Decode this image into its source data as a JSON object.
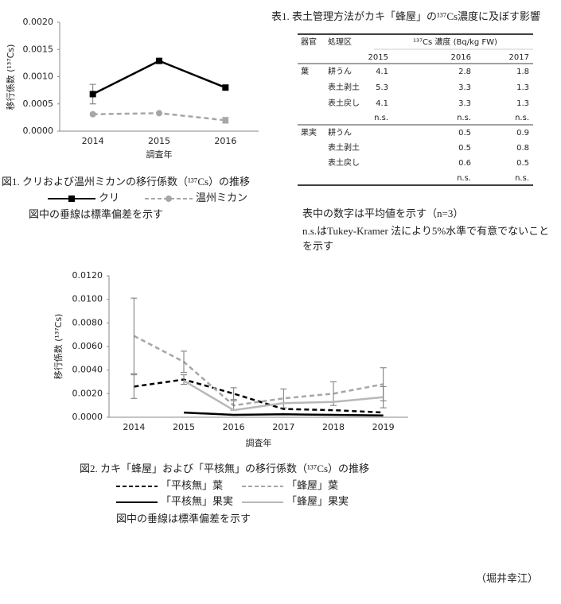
{
  "chart_data": [
    {
      "type": "line",
      "ylabel": "移行係数 (¹³⁷Cs)",
      "xlabel": "調査年",
      "categories": [
        "2014",
        "2015",
        "2016"
      ],
      "ylim": [
        0,
        0.002
      ],
      "yticks": [
        {
          "value": 0,
          "label": "0.0000"
        },
        {
          "value": 0.0005,
          "label": "0.0005"
        },
        {
          "value": 0.001,
          "label": "0.0010"
        },
        {
          "value": 0.0015,
          "label": "0.0015"
        },
        {
          "value": 0.002,
          "label": "0.0020"
        }
      ],
      "series": [
        {
          "name": "クリ",
          "color": "#000000",
          "dash": false,
          "marker": "square",
          "values": [
            0.00068,
            0.00129,
            0.0008
          ],
          "errors": [
            0.00018,
            null,
            null
          ]
        },
        {
          "name": "温州ミカン",
          "color": "#a6a6a6",
          "dash": true,
          "marker": "circle",
          "values": [
            0.00031,
            0.00033,
            0.0002
          ],
          "errors": [
            null,
            null,
            5e-05
          ]
        }
      ],
      "caption": "図1. クリおよび温州ミカンの移行係数（¹³⁷Cs）の推移",
      "note": "図中の垂線は標準偏差を示す"
    },
    {
      "type": "line",
      "ylabel": "移行係数 (¹³⁷Cs)",
      "xlabel": "調査年",
      "categories": [
        "2014",
        "2015",
        "2016",
        "2017",
        "2018",
        "2019"
      ],
      "ylim": [
        0,
        0.012
      ],
      "yticks": [
        {
          "value": 0,
          "label": "0.0000"
        },
        {
          "value": 0.002,
          "label": "0.0020"
        },
        {
          "value": 0.004,
          "label": "0.0040"
        },
        {
          "value": 0.006,
          "label": "0.0060"
        },
        {
          "value": 0.008,
          "label": "0.0080"
        },
        {
          "value": 0.01,
          "label": "0.0100"
        },
        {
          "value": 0.012,
          "label": "0.0120"
        }
      ],
      "series": [
        {
          "name": "「平核無」葉",
          "color": "#000000",
          "dash": true,
          "values": [
            0.0026,
            0.0032,
            0.002,
            0.0007,
            0.0006,
            0.0004
          ],
          "errors": [
            0.001,
            0.0004,
            0.0005,
            null,
            null,
            null
          ]
        },
        {
          "name": "「蜂屋」葉",
          "color": "#a6a6a6",
          "dash": true,
          "values": [
            0.0069,
            0.0047,
            0.001,
            0.0016,
            0.002,
            0.0028
          ],
          "errors": [
            0.0032,
            0.0009,
            0.0004,
            0.0008,
            0.001,
            0.0014
          ]
        },
        {
          "name": "「平核無」果実",
          "color": "#000000",
          "dash": false,
          "values": [
            null,
            0.0004,
            0.0002,
            0.00025,
            0.0002,
            0.00015
          ],
          "errors": [
            null,
            null,
            null,
            null,
            null,
            null
          ]
        },
        {
          "name": "「蜂屋」果実",
          "color": "#b8b8b8",
          "dash": false,
          "values": [
            null,
            0.0031,
            0.0006,
            0.0012,
            0.0013,
            0.0017
          ],
          "errors": [
            null,
            null,
            null,
            null,
            null,
            0.0009
          ]
        }
      ],
      "caption": "図2. カキ「蜂屋」および「平核無」の移行係数（¹³⁷Cs）の推移",
      "note": "図中の垂線は標準偏差を示す"
    }
  ],
  "table1": {
    "title": "表1. 表土管理方法がカキ「蜂屋」の¹³⁷Cs濃度に及ぼす影響",
    "header": [
      "器官",
      "処理区",
      "¹³⁷Cs 濃度 (Bq/kg FW)"
    ],
    "years": [
      "2015",
      "2016",
      "2017"
    ],
    "rows": [
      [
        "葉",
        "耕うん",
        4.1,
        2.8,
        1.8
      ],
      [
        null,
        "表土剥土",
        5.3,
        3.3,
        1.3
      ],
      [
        null,
        "表土戻し",
        4.1,
        3.3,
        1.3
      ],
      [
        null,
        null,
        "n.s.",
        "n.s.",
        "n.s."
      ],
      [
        "果実",
        "耕うん",
        null,
        0.5,
        0.9
      ],
      [
        null,
        "表土剥土",
        null,
        0.5,
        0.8
      ],
      [
        null,
        "表土戻し",
        null,
        0.6,
        0.5
      ],
      [
        null,
        null,
        null,
        "n.s.",
        "n.s."
      ]
    ],
    "notes": [
      "表中の数字は平均値を示す（n=3）",
      "n.s.はTukey-Kramer 法により5%水準で有意でないこと",
      "を示す"
    ]
  },
  "author": "（堀井幸江）"
}
